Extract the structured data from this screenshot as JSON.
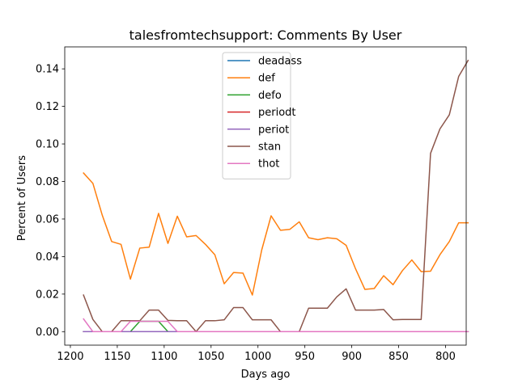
{
  "chart_data": {
    "type": "line",
    "title": "talesfromtechsupport: Comments By User",
    "xlabel": "Days ago",
    "ylabel": "Percent of Users",
    "xlim": [
      1206,
      778
    ],
    "ylim": [
      -0.0072,
      0.1517
    ],
    "x_inverted": true,
    "x_ticks": [
      1200,
      1150,
      1100,
      1050,
      1000,
      950,
      900,
      850,
      800
    ],
    "y_ticks": [
      0.0,
      0.02,
      0.04,
      0.06,
      0.08,
      0.1,
      0.12,
      0.14
    ],
    "x_tick_labels": [
      "1200",
      "1150",
      "1100",
      "1050",
      "1000",
      "950",
      "900",
      "850",
      "800"
    ],
    "y_tick_labels": [
      "0.00",
      "0.02",
      "0.04",
      "0.06",
      "0.08",
      "0.10",
      "0.12",
      "0.14"
    ],
    "grid": false,
    "legend_position": "top-center",
    "x": [
      1186,
      1176,
      1166,
      1156,
      1146,
      1136,
      1126,
      1116,
      1106,
      1096,
      1086,
      1076,
      1066,
      1056,
      1046,
      1036,
      1026,
      1016,
      1006,
      996,
      986,
      976,
      966,
      956,
      946,
      936,
      926,
      916,
      906,
      896,
      886,
      876,
      866,
      856,
      846,
      836,
      826,
      816,
      806,
      796,
      786,
      776
    ],
    "series": [
      {
        "name": "deadass",
        "color": "#1f77b4",
        "values": [
          0,
          0,
          0,
          0,
          0,
          0,
          0,
          0,
          0,
          0,
          0,
          0,
          0,
          0,
          0,
          0,
          0,
          0,
          0,
          0,
          0,
          0,
          0,
          0,
          0,
          0,
          0,
          0,
          0,
          0,
          0,
          0,
          0,
          0,
          0,
          0,
          0,
          0,
          0,
          0,
          0,
          0
        ]
      },
      {
        "name": "def",
        "color": "#ff7f0e",
        "values": [
          0.0845,
          0.079,
          0.062,
          0.048,
          0.0465,
          0.028,
          0.0445,
          0.045,
          0.063,
          0.047,
          0.0615,
          0.0505,
          0.0512,
          0.0465,
          0.041,
          0.0255,
          0.0315,
          0.0312,
          0.0195,
          0.0435,
          0.0617,
          0.054,
          0.0545,
          0.0585,
          0.05,
          0.049,
          0.05,
          0.0495,
          0.046,
          0.0335,
          0.0225,
          0.023,
          0.0298,
          0.025,
          0.0325,
          0.0382,
          0.032,
          0.0322,
          0.041,
          0.048,
          0.058,
          0.058
        ]
      },
      {
        "name": "defo",
        "color": "#2ca02c",
        "values": [
          0,
          0,
          0,
          0,
          0,
          0,
          0.0055,
          0.0055,
          0.0055,
          0,
          0,
          0,
          0,
          0,
          0,
          0,
          0,
          0,
          0,
          0,
          0,
          0,
          0,
          0,
          0,
          0,
          0,
          0,
          0,
          0,
          0,
          0,
          0,
          0,
          0,
          0,
          0,
          0,
          0,
          0,
          0,
          0
        ]
      },
      {
        "name": "periodt",
        "color": "#d62728",
        "values": [
          0,
          0,
          0,
          0,
          0,
          0,
          0,
          0,
          0,
          0,
          0,
          0,
          0,
          0,
          0,
          0,
          0,
          0,
          0,
          0,
          0,
          0,
          0,
          0,
          0,
          0,
          0,
          0,
          0,
          0,
          0,
          0,
          0,
          0,
          0,
          0,
          0,
          0,
          0,
          0,
          0,
          0
        ]
      },
      {
        "name": "periot",
        "color": "#9467bd",
        "values": [
          0,
          0,
          0,
          0,
          0,
          0,
          0,
          0,
          0,
          0,
          0,
          0,
          0,
          0,
          0,
          0,
          0,
          0,
          0,
          0,
          0,
          0,
          0,
          0,
          0,
          0,
          0,
          0,
          0,
          0,
          0,
          0,
          0,
          0,
          0,
          0,
          0,
          0,
          0,
          0,
          0,
          0
        ]
      },
      {
        "name": "stan",
        "color": "#8c564b",
        "values": [
          0.0195,
          0.0065,
          0,
          0,
          0.0058,
          0.0058,
          0.0058,
          0.0115,
          0.0115,
          0.006,
          0.0058,
          0.0058,
          0,
          0.0058,
          0.0058,
          0.0063,
          0.0128,
          0.0128,
          0.0063,
          0.0063,
          0.0063,
          0,
          0,
          0,
          0.0125,
          0.0125,
          0.0125,
          0.0185,
          0.0228,
          0.0115,
          0.0115,
          0.0115,
          0.0118,
          0.0063,
          0.0065,
          0.0065,
          0.0065,
          0.095,
          0.108,
          0.1155,
          0.136,
          0.1445
        ]
      },
      {
        "name": "thot",
        "color": "#e377c2",
        "values": [
          0.0068,
          0,
          0,
          0,
          0,
          0.0055,
          0.0055,
          0.0055,
          0.0055,
          0.0055,
          0,
          0,
          0,
          0,
          0,
          0,
          0,
          0,
          0,
          0,
          0,
          0,
          0,
          0,
          0,
          0,
          0,
          0,
          0,
          0,
          0,
          0,
          0,
          0,
          0,
          0,
          0,
          0,
          0,
          0,
          0,
          0
        ]
      }
    ]
  }
}
